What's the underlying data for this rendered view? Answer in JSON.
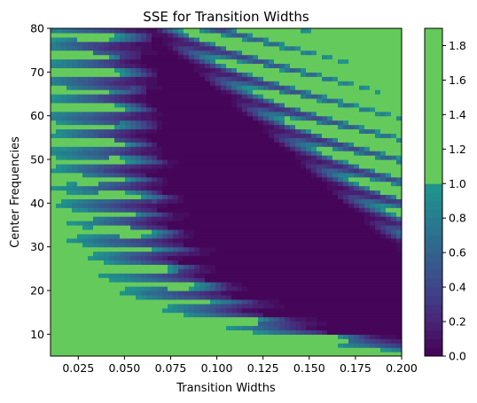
{
  "chart_data": {
    "type": "heatmap",
    "style": "filled-contour",
    "title": "SSE for Transition Widths",
    "xlabel": "Transition Widths",
    "ylabel": "Center Frequencies",
    "xlim": [
      0.01,
      0.2
    ],
    "ylim": [
      5,
      80
    ],
    "xticks": [
      0.025,
      0.05,
      0.075,
      0.1,
      0.125,
      0.15,
      0.175,
      0.2
    ],
    "xtick_labels": [
      "0.025",
      "0.050",
      "0.075",
      "0.100",
      "0.125",
      "0.150",
      "0.175",
      "0.200"
    ],
    "yticks": [
      10,
      20,
      30,
      40,
      50,
      60,
      70,
      80
    ],
    "ytick_labels": [
      "10",
      "20",
      "30",
      "40",
      "50",
      "60",
      "70",
      "80"
    ],
    "colormap": "viridis",
    "colorbar": {
      "range": [
        0,
        1.9
      ],
      "ticks": [
        0.0,
        0.2,
        0.4,
        0.6,
        0.8,
        1.0,
        1.2,
        1.4,
        1.6,
        1.8
      ],
      "tick_labels": [
        "0.0",
        "0.2",
        "0.4",
        "0.6",
        "0.8",
        "1.0",
        "1.2",
        "1.4",
        "1.6",
        "1.8"
      ],
      "levels": [
        0,
        0.05,
        0.1,
        0.15,
        0.2,
        0.25,
        0.3,
        0.35,
        0.4,
        0.45,
        0.5,
        0.55,
        0.6,
        0.65,
        0.7,
        0.75,
        0.8,
        0.85,
        0.9,
        0.95,
        1.0,
        1.9
      ]
    },
    "description_of_field": {
      "low_frequency_low_width": "high SSE (~1.0–1.9)",
      "diagonal_band": "SSE decays from ~1.0 to ~0.2 as width increases",
      "center_region": "SSE near 0.0",
      "upper_right": "high SSE (~1.0–1.9) above a diagonal from (0.12,80) to (0.2,50)"
    }
  }
}
